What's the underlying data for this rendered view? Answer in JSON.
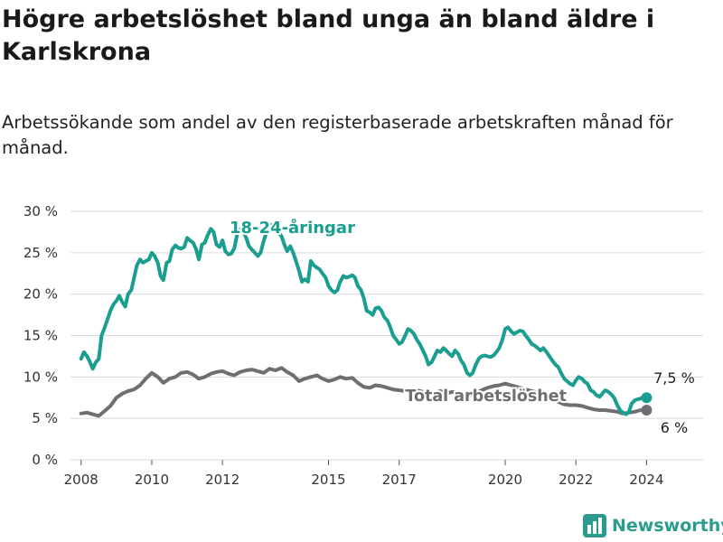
{
  "header": {
    "title": "Högre arbetslöshet bland unga än bland äldre i Karlskrona",
    "subtitle": "Arbetssökande som andel av den registerbaserade arbetskraften månad för månad."
  },
  "brand": {
    "name": "Newsworthy",
    "icon": "bar-chart-logo-icon",
    "color": "#2a9b8c"
  },
  "chart_data": {
    "type": "line",
    "ylim": [
      0,
      30
    ],
    "xlim": [
      2007.7,
      2025.6
    ],
    "yticks": [
      0,
      5,
      10,
      15,
      20,
      25,
      30
    ],
    "ytick_labels": [
      "0 %",
      "5 %",
      "10 %",
      "15 %",
      "20 %",
      "25 %",
      "30 %"
    ],
    "xticks": [
      2008,
      2010,
      2012,
      2015,
      2017,
      2020,
      2022,
      2024
    ],
    "xtick_labels": [
      "2008",
      "2010",
      "2012",
      "2015",
      "2017",
      "2020",
      "2022",
      "2024"
    ],
    "grid": true,
    "series": [
      {
        "name": "18-24-åringar",
        "color": "#1a9e8f",
        "end_label": "7,5 %",
        "points": [
          [
            2008.0,
            12.2
          ],
          [
            2008.08,
            13.0
          ],
          [
            2008.17,
            12.5
          ],
          [
            2008.25,
            11.8
          ],
          [
            2008.33,
            11.0
          ],
          [
            2008.42,
            11.8
          ],
          [
            2008.5,
            12.2
          ],
          [
            2008.58,
            15.0
          ],
          [
            2008.67,
            16.0
          ],
          [
            2008.75,
            17.0
          ],
          [
            2008.83,
            18.0
          ],
          [
            2008.92,
            18.8
          ],
          [
            2009.0,
            19.2
          ],
          [
            2009.08,
            19.8
          ],
          [
            2009.17,
            19.0
          ],
          [
            2009.25,
            18.5
          ],
          [
            2009.33,
            20.0
          ],
          [
            2009.42,
            20.5
          ],
          [
            2009.5,
            22.0
          ],
          [
            2009.58,
            23.5
          ],
          [
            2009.67,
            24.2
          ],
          [
            2009.75,
            23.8
          ],
          [
            2009.83,
            24.0
          ],
          [
            2009.92,
            24.2
          ],
          [
            2010.0,
            25.0
          ],
          [
            2010.08,
            24.6
          ],
          [
            2010.17,
            23.8
          ],
          [
            2010.25,
            22.2
          ],
          [
            2010.33,
            21.7
          ],
          [
            2010.42,
            23.8
          ],
          [
            2010.5,
            24.0
          ],
          [
            2010.58,
            25.4
          ],
          [
            2010.67,
            25.9
          ],
          [
            2010.75,
            25.6
          ],
          [
            2010.83,
            25.5
          ],
          [
            2010.92,
            25.7
          ],
          [
            2011.0,
            26.8
          ],
          [
            2011.08,
            26.5
          ],
          [
            2011.17,
            26.2
          ],
          [
            2011.25,
            25.5
          ],
          [
            2011.33,
            24.2
          ],
          [
            2011.42,
            26.0
          ],
          [
            2011.5,
            26.2
          ],
          [
            2011.58,
            27.1
          ],
          [
            2011.67,
            27.9
          ],
          [
            2011.75,
            27.5
          ],
          [
            2011.83,
            26.0
          ],
          [
            2011.92,
            25.7
          ],
          [
            2012.0,
            26.5
          ],
          [
            2012.08,
            25.2
          ],
          [
            2012.17,
            24.8
          ],
          [
            2012.25,
            24.9
          ],
          [
            2012.33,
            25.5
          ],
          [
            2012.42,
            27.3
          ],
          [
            2012.5,
            27.8
          ],
          [
            2012.58,
            27.7
          ],
          [
            2012.67,
            26.8
          ],
          [
            2012.75,
            25.8
          ],
          [
            2012.83,
            25.4
          ],
          [
            2012.92,
            25.0
          ],
          [
            2013.0,
            24.6
          ],
          [
            2013.08,
            25.0
          ],
          [
            2013.17,
            26.5
          ],
          [
            2013.25,
            27.5
          ],
          [
            2013.33,
            28.2
          ],
          [
            2013.42,
            28.4
          ],
          [
            2013.5,
            28.0
          ],
          [
            2013.58,
            27.5
          ],
          [
            2013.67,
            27.0
          ],
          [
            2013.75,
            26.0
          ],
          [
            2013.83,
            25.2
          ],
          [
            2013.92,
            25.8
          ],
          [
            2014.0,
            25.0
          ],
          [
            2014.08,
            24.0
          ],
          [
            2014.17,
            22.8
          ],
          [
            2014.25,
            21.5
          ],
          [
            2014.33,
            21.8
          ],
          [
            2014.42,
            21.5
          ],
          [
            2014.5,
            24.0
          ],
          [
            2014.58,
            23.5
          ],
          [
            2014.67,
            23.2
          ],
          [
            2014.75,
            23.0
          ],
          [
            2014.83,
            22.5
          ],
          [
            2014.92,
            22.0
          ],
          [
            2015.0,
            21.0
          ],
          [
            2015.08,
            20.5
          ],
          [
            2015.17,
            20.2
          ],
          [
            2015.25,
            20.5
          ],
          [
            2015.33,
            21.5
          ],
          [
            2015.42,
            22.2
          ],
          [
            2015.5,
            22.0
          ],
          [
            2015.58,
            22.1
          ],
          [
            2015.67,
            22.3
          ],
          [
            2015.75,
            22.0
          ],
          [
            2015.83,
            21.0
          ],
          [
            2015.92,
            20.5
          ],
          [
            2016.0,
            19.5
          ],
          [
            2016.08,
            18.0
          ],
          [
            2016.17,
            17.8
          ],
          [
            2016.25,
            17.5
          ],
          [
            2016.33,
            18.3
          ],
          [
            2016.42,
            18.4
          ],
          [
            2016.5,
            18.0
          ],
          [
            2016.58,
            17.2
          ],
          [
            2016.67,
            16.8
          ],
          [
            2016.75,
            16.0
          ],
          [
            2016.83,
            15.0
          ],
          [
            2016.92,
            14.5
          ],
          [
            2017.0,
            14.0
          ],
          [
            2017.08,
            14.2
          ],
          [
            2017.17,
            15.0
          ],
          [
            2017.25,
            15.8
          ],
          [
            2017.33,
            15.6
          ],
          [
            2017.42,
            15.2
          ],
          [
            2017.5,
            14.5
          ],
          [
            2017.58,
            14.0
          ],
          [
            2017.67,
            13.2
          ],
          [
            2017.75,
            12.5
          ],
          [
            2017.83,
            11.5
          ],
          [
            2017.92,
            11.8
          ],
          [
            2018.0,
            12.5
          ],
          [
            2018.08,
            13.2
          ],
          [
            2018.17,
            13.0
          ],
          [
            2018.25,
            13.5
          ],
          [
            2018.33,
            13.2
          ],
          [
            2018.42,
            12.8
          ],
          [
            2018.5,
            12.5
          ],
          [
            2018.58,
            13.2
          ],
          [
            2018.67,
            12.8
          ],
          [
            2018.75,
            12.0
          ],
          [
            2018.83,
            11.5
          ],
          [
            2018.92,
            10.5
          ],
          [
            2019.0,
            10.2
          ],
          [
            2019.08,
            10.5
          ],
          [
            2019.17,
            11.5
          ],
          [
            2019.25,
            12.2
          ],
          [
            2019.33,
            12.5
          ],
          [
            2019.42,
            12.6
          ],
          [
            2019.5,
            12.5
          ],
          [
            2019.58,
            12.4
          ],
          [
            2019.67,
            12.6
          ],
          [
            2019.75,
            13.0
          ],
          [
            2019.83,
            13.5
          ],
          [
            2019.92,
            14.5
          ],
          [
            2020.0,
            15.8
          ],
          [
            2020.08,
            16.0
          ],
          [
            2020.17,
            15.5
          ],
          [
            2020.25,
            15.2
          ],
          [
            2020.33,
            15.4
          ],
          [
            2020.42,
            15.6
          ],
          [
            2020.5,
            15.5
          ],
          [
            2020.58,
            15.0
          ],
          [
            2020.67,
            14.5
          ],
          [
            2020.75,
            14.0
          ],
          [
            2020.83,
            13.8
          ],
          [
            2020.92,
            13.5
          ],
          [
            2021.0,
            13.2
          ],
          [
            2021.08,
            13.5
          ],
          [
            2021.17,
            13.0
          ],
          [
            2021.25,
            12.5
          ],
          [
            2021.33,
            12.0
          ],
          [
            2021.42,
            11.5
          ],
          [
            2021.5,
            11.2
          ],
          [
            2021.58,
            10.5
          ],
          [
            2021.67,
            9.8
          ],
          [
            2021.75,
            9.5
          ],
          [
            2021.83,
            9.2
          ],
          [
            2021.92,
            9.0
          ],
          [
            2022.0,
            9.6
          ],
          [
            2022.08,
            10.0
          ],
          [
            2022.17,
            9.8
          ],
          [
            2022.25,
            9.4
          ],
          [
            2022.33,
            9.2
          ],
          [
            2022.42,
            8.4
          ],
          [
            2022.5,
            8.2
          ],
          [
            2022.58,
            7.8
          ],
          [
            2022.67,
            7.6
          ],
          [
            2022.75,
            8.0
          ],
          [
            2022.83,
            8.4
          ],
          [
            2022.92,
            8.2
          ],
          [
            2023.0,
            7.9
          ],
          [
            2023.08,
            7.5
          ],
          [
            2023.17,
            6.6
          ],
          [
            2023.25,
            6.0
          ],
          [
            2023.33,
            5.7
          ],
          [
            2023.42,
            5.5
          ],
          [
            2023.5,
            5.8
          ],
          [
            2023.58,
            6.8
          ],
          [
            2023.67,
            7.2
          ],
          [
            2023.75,
            7.3
          ],
          [
            2023.83,
            7.4
          ],
          [
            2023.92,
            7.6
          ],
          [
            2024.0,
            7.5
          ]
        ]
      },
      {
        "name": "Total arbetslöshet",
        "color": "#6e6e73",
        "end_label": "6 %",
        "points": [
          [
            2008.0,
            5.6
          ],
          [
            2008.17,
            5.7
          ],
          [
            2008.33,
            5.5
          ],
          [
            2008.5,
            5.3
          ],
          [
            2008.67,
            5.9
          ],
          [
            2008.83,
            6.5
          ],
          [
            2009.0,
            7.5
          ],
          [
            2009.17,
            8.0
          ],
          [
            2009.33,
            8.3
          ],
          [
            2009.5,
            8.5
          ],
          [
            2009.67,
            9.0
          ],
          [
            2009.83,
            9.8
          ],
          [
            2010.0,
            10.5
          ],
          [
            2010.17,
            10.0
          ],
          [
            2010.33,
            9.3
          ],
          [
            2010.5,
            9.8
          ],
          [
            2010.67,
            10.0
          ],
          [
            2010.83,
            10.5
          ],
          [
            2011.0,
            10.6
          ],
          [
            2011.17,
            10.3
          ],
          [
            2011.33,
            9.8
          ],
          [
            2011.5,
            10.0
          ],
          [
            2011.67,
            10.4
          ],
          [
            2011.83,
            10.6
          ],
          [
            2012.0,
            10.7
          ],
          [
            2012.17,
            10.4
          ],
          [
            2012.33,
            10.2
          ],
          [
            2012.5,
            10.6
          ],
          [
            2012.67,
            10.8
          ],
          [
            2012.83,
            10.9
          ],
          [
            2013.0,
            10.7
          ],
          [
            2013.17,
            10.5
          ],
          [
            2013.33,
            11.0
          ],
          [
            2013.5,
            10.8
          ],
          [
            2013.67,
            11.1
          ],
          [
            2013.83,
            10.6
          ],
          [
            2014.0,
            10.2
          ],
          [
            2014.17,
            9.5
          ],
          [
            2014.33,
            9.8
          ],
          [
            2014.5,
            10.0
          ],
          [
            2014.67,
            10.2
          ],
          [
            2014.83,
            9.8
          ],
          [
            2015.0,
            9.5
          ],
          [
            2015.17,
            9.7
          ],
          [
            2015.33,
            10.0
          ],
          [
            2015.5,
            9.8
          ],
          [
            2015.67,
            9.9
          ],
          [
            2015.83,
            9.3
          ],
          [
            2016.0,
            8.8
          ],
          [
            2016.17,
            8.7
          ],
          [
            2016.33,
            9.0
          ],
          [
            2016.5,
            8.9
          ],
          [
            2016.67,
            8.7
          ],
          [
            2016.83,
            8.5
          ],
          [
            2017.0,
            8.4
          ],
          [
            2017.17,
            8.3
          ],
          [
            2017.33,
            8.5
          ],
          [
            2017.5,
            8.4
          ],
          [
            2017.67,
            8.2
          ],
          [
            2017.83,
            8.0
          ],
          [
            2018.0,
            8.1
          ],
          [
            2018.17,
            8.3
          ],
          [
            2018.33,
            8.0
          ],
          [
            2018.5,
            8.2
          ],
          [
            2018.67,
            8.1
          ],
          [
            2018.83,
            7.9
          ],
          [
            2019.0,
            7.8
          ],
          [
            2019.17,
            8.0
          ],
          [
            2019.33,
            8.4
          ],
          [
            2019.5,
            8.7
          ],
          [
            2019.67,
            8.9
          ],
          [
            2019.83,
            9.0
          ],
          [
            2020.0,
            9.2
          ],
          [
            2020.17,
            9.0
          ],
          [
            2020.33,
            8.8
          ],
          [
            2020.5,
            8.6
          ],
          [
            2020.67,
            8.4
          ],
          [
            2020.83,
            8.2
          ],
          [
            2021.0,
            8.0
          ],
          [
            2021.17,
            7.7
          ],
          [
            2021.33,
            7.4
          ],
          [
            2021.5,
            7.0
          ],
          [
            2021.67,
            6.7
          ],
          [
            2021.83,
            6.6
          ],
          [
            2022.0,
            6.6
          ],
          [
            2022.17,
            6.5
          ],
          [
            2022.33,
            6.3
          ],
          [
            2022.5,
            6.1
          ],
          [
            2022.67,
            6.0
          ],
          [
            2022.83,
            6.0
          ],
          [
            2023.0,
            5.9
          ],
          [
            2023.17,
            5.8
          ],
          [
            2023.33,
            5.6
          ],
          [
            2023.5,
            5.7
          ],
          [
            2023.67,
            5.8
          ],
          [
            2023.83,
            6.0
          ],
          [
            2024.0,
            6.0
          ]
        ]
      }
    ]
  }
}
